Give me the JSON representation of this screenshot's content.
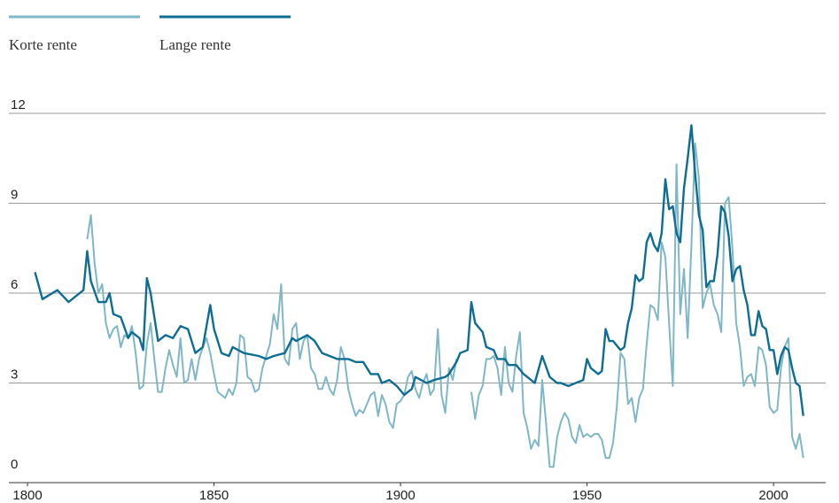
{
  "chart_data": {
    "type": "line",
    "series": [
      {
        "name": "Korte rente",
        "color": "#7fb7c7",
        "x": [
          1816,
          1817,
          1818,
          1819,
          1820,
          1821,
          1822,
          1823,
          1824,
          1825,
          1826,
          1827,
          1828,
          1829,
          1830,
          1831,
          1832,
          1833,
          1834,
          1835,
          1836,
          1837,
          1838,
          1839,
          1840,
          1841,
          1842,
          1843,
          1844,
          1845,
          1846,
          1847,
          1848,
          1849,
          1850,
          1851,
          1852,
          1853,
          1854,
          1855,
          1856,
          1857,
          1858,
          1859,
          1860,
          1861,
          1862,
          1863,
          1864,
          1865,
          1866,
          1867,
          1868,
          1869,
          1870,
          1871,
          1872,
          1873,
          1874,
          1875,
          1876,
          1877,
          1878,
          1879,
          1880,
          1881,
          1882,
          1883,
          1884,
          1885,
          1886,
          1887,
          1888,
          1889,
          1890,
          1891,
          1892,
          1893,
          1894,
          1895,
          1896,
          1897,
          1898,
          1899,
          1900,
          1901,
          1902,
          1903,
          1904,
          1905,
          1906,
          1907,
          1908,
          1909,
          1910,
          1911,
          1912,
          1913,
          1914,
          1915,
          1916,
          1919,
          1920,
          1921,
          1922,
          1923,
          1924,
          1925,
          1926,
          1927,
          1928,
          1929,
          1930,
          1931,
          1932,
          1933,
          1934,
          1935,
          1936,
          1937,
          1938,
          1939,
          1940,
          1941,
          1942,
          1943,
          1944,
          1945,
          1946,
          1947,
          1948,
          1949,
          1950,
          1951,
          1952,
          1953,
          1954,
          1955,
          1956,
          1957,
          1958,
          1959,
          1960,
          1961,
          1962,
          1963,
          1964,
          1965,
          1966,
          1967,
          1968,
          1969,
          1970,
          1971,
          1972,
          1973,
          1974,
          1975,
          1976,
          1977,
          1978,
          1979,
          1980,
          1981,
          1982,
          1983,
          1984,
          1985,
          1986,
          1987,
          1988,
          1989,
          1990,
          1991,
          1992,
          1993,
          1994,
          1995,
          1996,
          1997,
          1998,
          1999,
          2000,
          2001,
          2002,
          2003,
          2004,
          2005,
          2006,
          2007,
          2008
        ],
        "values": [
          7.8,
          8.6,
          7.0,
          6.0,
          6.3,
          5.0,
          4.5,
          4.8,
          4.9,
          4.2,
          4.6,
          4.5,
          4.9,
          4.0,
          2.8,
          2.9,
          4.3,
          5.0,
          3.8,
          2.7,
          2.7,
          3.5,
          4.1,
          3.6,
          3.2,
          4.5,
          3.0,
          3.1,
          3.8,
          3.1,
          3.8,
          4.2,
          4.5,
          4.0,
          3.3,
          2.7,
          2.6,
          2.5,
          2.8,
          2.6,
          3.0,
          4.6,
          4.5,
          3.2,
          3.1,
          2.7,
          2.8,
          3.5,
          3.9,
          4.3,
          5.3,
          4.8,
          6.3,
          3.8,
          3.6,
          4.8,
          5.0,
          3.8,
          4.4,
          4.6,
          3.5,
          3.3,
          2.8,
          2.8,
          3.2,
          2.8,
          2.6,
          3.1,
          4.2,
          3.8,
          2.8,
          2.3,
          1.9,
          2.1,
          2.0,
          2.3,
          2.6,
          2.7,
          1.9,
          2.6,
          2.3,
          1.7,
          1.5,
          2.3,
          2.4,
          2.6,
          3.2,
          3.4,
          2.8,
          2.5,
          3.0,
          3.3,
          2.6,
          2.8,
          4.8,
          2.6,
          2.0,
          3.5,
          3.1,
          3.8,
          null,
          2.7,
          1.8,
          2.6,
          2.9,
          3.8,
          3.8,
          3.9,
          3.5,
          2.6,
          4.2,
          3.0,
          2.7,
          3.9,
          4.7,
          2.0,
          1.5,
          0.8,
          1.1,
          0.9,
          3.1,
          1.7,
          0.2,
          0.2,
          1.2,
          1.7,
          2.0,
          1.8,
          1.2,
          1.0,
          1.6,
          1.2,
          1.3,
          1.2,
          1.3,
          1.3,
          1.1,
          0.5,
          0.5,
          1.0,
          2.2,
          4.0,
          3.8,
          2.3,
          2.5,
          1.7,
          2.5,
          2.8,
          4.3,
          5.6,
          5.5,
          5.1,
          7.7,
          7.2,
          5.0,
          2.9,
          10.3,
          5.3,
          6.8,
          4.5,
          7.6,
          11.0,
          9.8,
          5.5,
          6.0,
          6.3,
          5.6,
          5.3,
          4.7,
          9.0,
          9.2,
          7.5,
          5.0,
          4.2,
          2.9,
          3.2,
          3.3,
          2.9,
          4.2,
          4.1,
          3.6,
          2.2,
          2.0,
          2.1,
          3.5,
          4.2,
          4.5,
          1.2,
          0.8,
          1.3,
          0.5
        ]
      },
      {
        "name": "Lange rente",
        "color": "#0d6d93",
        "x": [
          1802,
          1804,
          1808,
          1811,
          1815,
          1816,
          1817,
          1819,
          1821,
          1822,
          1823,
          1825,
          1827,
          1828,
          1830,
          1831,
          1832,
          1833,
          1835,
          1837,
          1839,
          1841,
          1843,
          1845,
          1847,
          1849,
          1850,
          1852,
          1854,
          1855,
          1858,
          1862,
          1864,
          1866,
          1869,
          1871,
          1872,
          1875,
          1877,
          1879,
          1881,
          1883,
          1886,
          1888,
          1890,
          1892,
          1894,
          1895,
          1897,
          1899,
          1901,
          1902,
          1903,
          1904,
          1907,
          1909,
          1912,
          1913,
          1915,
          1916,
          1918,
          1919,
          1920,
          1922,
          1923,
          1925,
          1926,
          1928,
          1929,
          1931,
          1933,
          1934,
          1936,
          1938,
          1940,
          1942,
          1943,
          1945,
          1947,
          1949,
          1950,
          1951,
          1953,
          1954,
          1955,
          1956,
          1957,
          1959,
          1960,
          1961,
          1962,
          1963,
          1964,
          1965,
          1966,
          1967,
          1968,
          1969,
          1970,
          1971,
          1972,
          1973,
          1974,
          1975,
          1976,
          1977,
          1978,
          1979,
          1980,
          1981,
          1982,
          1983,
          1984,
          1985,
          1986,
          1987,
          1988,
          1989,
          1990,
          1991,
          1992,
          1993,
          1994,
          1995,
          1996,
          1997,
          1998,
          1999,
          2000,
          2001,
          2002,
          2003,
          2004,
          2005,
          2006,
          2007,
          2008
        ],
        "values": [
          6.7,
          5.8,
          6.1,
          5.7,
          6.1,
          7.4,
          6.4,
          5.7,
          5.7,
          6.0,
          5.3,
          5.2,
          4.5,
          4.7,
          4.5,
          4.1,
          6.5,
          6.0,
          4.4,
          4.6,
          4.5,
          4.9,
          4.8,
          4.0,
          4.2,
          5.6,
          4.8,
          4.0,
          3.9,
          4.2,
          4.0,
          3.9,
          3.8,
          3.9,
          4.0,
          4.5,
          4.4,
          4.6,
          4.4,
          4.0,
          3.9,
          3.8,
          3.8,
          3.7,
          3.7,
          3.3,
          3.3,
          3.0,
          3.1,
          2.9,
          2.6,
          2.7,
          2.8,
          3.2,
          3.0,
          3.1,
          3.2,
          3.3,
          3.7,
          4.0,
          4.1,
          5.7,
          5.0,
          4.7,
          4.2,
          4.1,
          3.8,
          3.8,
          3.6,
          3.6,
          3.3,
          3.2,
          3.0,
          3.9,
          3.2,
          3.0,
          3.0,
          2.9,
          3.0,
          3.1,
          3.8,
          3.5,
          3.3,
          3.4,
          4.8,
          4.4,
          4.4,
          4.1,
          4.2,
          5.0,
          5.5,
          6.6,
          6.4,
          6.5,
          7.7,
          8.0,
          7.6,
          7.4,
          8.0,
          9.8,
          8.8,
          8.9,
          8.0,
          7.7,
          9.5,
          10.5,
          11.6,
          10.0,
          8.6,
          8.1,
          6.2,
          6.4,
          6.4,
          7.3,
          8.9,
          8.7,
          7.9,
          6.4,
          6.8,
          6.9,
          6.1,
          5.6,
          4.6,
          4.6,
          5.4,
          4.9,
          4.8,
          4.1,
          4.1,
          3.3,
          3.9,
          4.2,
          4.1,
          3.5,
          3.0,
          2.9,
          1.9
        ]
      }
    ],
    "xlim": [
      1795,
      2014
    ],
    "xticks": [
      1800,
      1850,
      1900,
      1950,
      2000
    ],
    "ylim": [
      0,
      12
    ],
    "yticks": [
      0,
      3,
      6,
      9,
      12
    ],
    "grid": true
  }
}
